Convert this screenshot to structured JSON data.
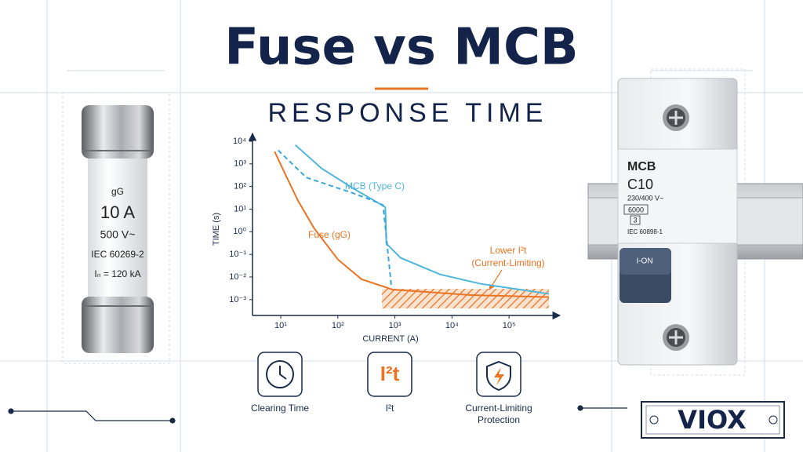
{
  "header": {
    "title": "Fuse vs MCB",
    "subtitle": "RESPONSE TIME"
  },
  "chart_data": {
    "type": "line",
    "xlabel": "CURRENT (A)",
    "ylabel": "TIME (s)",
    "xscale": "log",
    "yscale": "log",
    "xlim": [
      3.2,
      500000
    ],
    "ylim": [
      0.0002,
      10000
    ],
    "xticks": [
      {
        "value": 10,
        "label": "10¹"
      },
      {
        "value": 100,
        "label": "10²"
      },
      {
        "value": 1000,
        "label": "10³"
      },
      {
        "value": 10000,
        "label": "10⁴"
      },
      {
        "value": 100000,
        "label": "10⁵"
      }
    ],
    "yticks": [
      {
        "value": 10000,
        "label": "10⁴"
      },
      {
        "value": 1000,
        "label": "10³"
      },
      {
        "value": 100,
        "label": "10²"
      },
      {
        "value": 10,
        "label": "10¹"
      },
      {
        "value": 1,
        "label": "10⁰"
      },
      {
        "value": 0.1,
        "label": "10⁻¹"
      },
      {
        "value": 0.01,
        "label": "10⁻²"
      },
      {
        "value": 0.001,
        "label": "10⁻³"
      }
    ],
    "series": [
      {
        "name": "MCB (Type C)",
        "color": "#4fb6dc",
        "style": "solid",
        "x": [
          18,
          52,
          190,
          490,
          680,
          710,
          1260,
          6200,
          32000,
          500000
        ],
        "values": [
          6800,
          630,
          80,
          20,
          12,
          0.3,
          0.07,
          0.013,
          0.005,
          0.0018
        ]
      },
      {
        "color": "#3aa6d6",
        "style": "dashed",
        "x": [
          9,
          28,
          190,
          490,
          620,
          870
        ],
        "values": [
          4000,
          250,
          50,
          20,
          15,
          0.0035
        ]
      },
      {
        "name": "Fuse (gG)",
        "color": "#ea7424",
        "style": "solid",
        "x": [
          7.8,
          12.6,
          20,
          38,
          100,
          260,
          910,
          21000,
          500000
        ],
        "values": [
          3500,
          270,
          24,
          1.5,
          0.06,
          0.008,
          0.0028,
          0.0016,
          0.0013
        ]
      }
    ],
    "annotation": {
      "lines": [
        "Lower I²t",
        "(Current-Limiting)"
      ],
      "color": "#ea7424"
    }
  },
  "icons": [
    {
      "lines": [
        "Clearing Time"
      ]
    },
    {
      "glyph": "I²t",
      "lines": [
        "I²t"
      ]
    },
    {
      "lines": [
        "Current-Limiting",
        "Protection"
      ]
    }
  ],
  "fuse": {
    "labels": [
      "gG",
      "10 A",
      "500 V~",
      "IEC 60269-2",
      "Iₙ = 120 kA"
    ]
  },
  "mcb": {
    "labels": [
      "MCB",
      "C10",
      "230/400 V~",
      "6000",
      "3",
      "IEC 60898-1"
    ],
    "switch": "I-ON"
  },
  "brand": "VIOX"
}
